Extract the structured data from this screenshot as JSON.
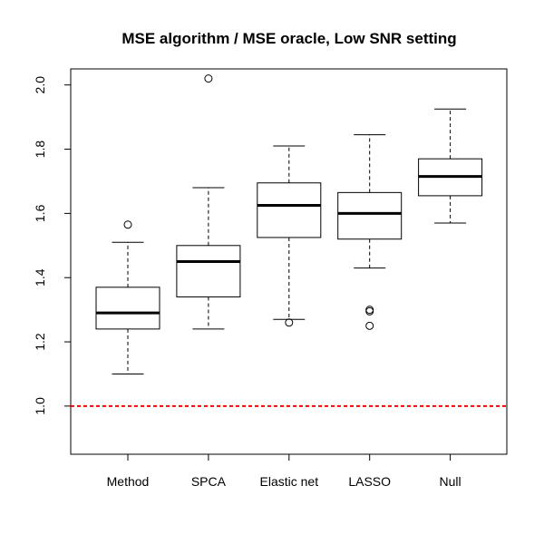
{
  "chart_data": {
    "type": "boxplot",
    "title": "MSE algorithm / MSE oracle, Low SNR setting",
    "xlabel": "",
    "ylabel": "",
    "ylim": [
      0.85,
      2.05
    ],
    "yticks": [
      "1.0",
      "1.2",
      "1.4",
      "1.6",
      "1.8",
      "2.0"
    ],
    "grid": false,
    "categories": [
      "Method",
      "SPCA",
      "Elastic net",
      "LASSO",
      "Null"
    ],
    "boxes": [
      {
        "name": "Method",
        "whisker_low": 1.1,
        "q1": 1.24,
        "median": 1.29,
        "q3": 1.37,
        "whisker_high": 1.51,
        "outliers": [
          1.565
        ]
      },
      {
        "name": "SPCA",
        "whisker_low": 1.24,
        "q1": 1.34,
        "median": 1.45,
        "q3": 1.5,
        "whisker_high": 1.68,
        "outliers": [
          2.02
        ]
      },
      {
        "name": "Elastic net",
        "whisker_low": 1.27,
        "q1": 1.525,
        "median": 1.625,
        "q3": 1.695,
        "whisker_high": 1.81,
        "outliers": [
          1.26
        ]
      },
      {
        "name": "LASSO",
        "whisker_low": 1.43,
        "q1": 1.52,
        "median": 1.6,
        "q3": 1.665,
        "whisker_high": 1.845,
        "outliers": [
          1.3,
          1.295,
          1.25
        ]
      },
      {
        "name": "Null",
        "whisker_low": 1.57,
        "q1": 1.655,
        "median": 1.715,
        "q3": 1.77,
        "whisker_high": 1.925,
        "outliers": []
      }
    ],
    "reference_line": {
      "y": 1.0,
      "color": "#ff0000",
      "style": "dashed"
    }
  }
}
